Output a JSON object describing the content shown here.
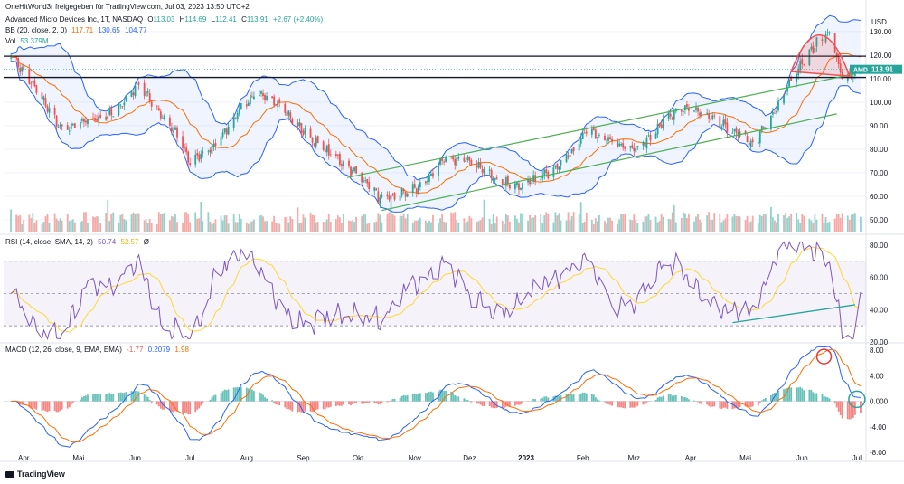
{
  "header": {
    "publisher": "OneHitWond3r freigegeben für TradingView.com, Jul 03, 2023 13:50 UTC+2",
    "symbol": "Advanced Micro Devices Inc, 1T, NASDAQ",
    "ohlc": {
      "o_label": "O",
      "o": "113.03",
      "h_label": "H",
      "h": "114.69",
      "l_label": "L",
      "l": "112.41",
      "c_label": "C",
      "c": "113.91",
      "chg": "+2.67 (+2.40%)"
    },
    "bb": {
      "label": "BB (20, close, 2, 0)",
      "basis": "117.71",
      "upper": "130.65",
      "lower": "104.77"
    },
    "vol": {
      "label": "Vol",
      "value": "53.379M"
    },
    "rsi": {
      "label": "RSI (14, close, SMA, 14, 2)",
      "value": "50.74",
      "ma": "52.57",
      "extra": "Ø"
    },
    "macd": {
      "label": "MACD (12, 26, close, 9, EMA, EMA)",
      "hist": "-1.77",
      "macd": "0.2079",
      "signal": "1.98"
    }
  },
  "currency": "USD",
  "price_tag": {
    "symbol": "AMD",
    "value": "113.91"
  },
  "brand": "TradingView",
  "colors": {
    "up": "#26a69a",
    "down": "#ef5350",
    "bb_band": "#2962ff",
    "bb_basis": "#ff6d00",
    "trend": "#4caf50",
    "rsi": "#7e57c2",
    "rsi_ma": "#fdd835",
    "macd": "#2962ff",
    "signal": "#ff6d00"
  },
  "chart_data": [
    {
      "type": "candlestick",
      "title": "Advanced Micro Devices Inc, 1T, NASDAQ",
      "ylim": [
        45,
        138
      ],
      "y_ticks": [
        "130.00",
        "120.00",
        "110.00",
        "100.00",
        "90.00",
        "80.00",
        "70.00",
        "60.00",
        "50.00"
      ],
      "x_ticks": [
        "Apr",
        "Mai",
        "Jun",
        "Jul",
        "Aug",
        "Sep",
        "Okt",
        "Nov",
        "Dez",
        "2023",
        "Feb",
        "Mrz",
        "Apr",
        "Mai",
        "Jun",
        "Jul"
      ],
      "close_path": [
        [
          "2022-03-25",
          120
        ],
        [
          "2022-04-08",
          105
        ],
        [
          "2022-04-22",
          88
        ],
        [
          "2022-05-06",
          92
        ],
        [
          "2022-05-20",
          95
        ],
        [
          "2022-06-03",
          108
        ],
        [
          "2022-06-10",
          100
        ],
        [
          "2022-06-24",
          86
        ],
        [
          "2022-07-01",
          74
        ],
        [
          "2022-07-15",
          82
        ],
        [
          "2022-07-29",
          98
        ],
        [
          "2022-08-05",
          103
        ],
        [
          "2022-08-19",
          100
        ],
        [
          "2022-08-26",
          92
        ],
        [
          "2022-09-09",
          82
        ],
        [
          "2022-09-23",
          74
        ],
        [
          "2022-10-07",
          65
        ],
        [
          "2022-10-14",
          58
        ],
        [
          "2022-10-28",
          62
        ],
        [
          "2022-11-04",
          64
        ],
        [
          "2022-11-18",
          76
        ],
        [
          "2022-12-02",
          75
        ],
        [
          "2022-12-16",
          67
        ],
        [
          "2022-12-30",
          64
        ],
        [
          "2023-01-13",
          70
        ],
        [
          "2023-01-27",
          80
        ],
        [
          "2023-02-03",
          88
        ],
        [
          "2023-02-17",
          83
        ],
        [
          "2023-03-03",
          80
        ],
        [
          "2023-03-17",
          92
        ],
        [
          "2023-03-31",
          98
        ],
        [
          "2023-04-14",
          92
        ],
        [
          "2023-04-28",
          86
        ],
        [
          "2023-05-05",
          82
        ],
        [
          "2023-05-19",
          98
        ],
        [
          "2023-05-26",
          110
        ],
        [
          "2023-06-09",
          125
        ],
        [
          "2023-06-16",
          130
        ],
        [
          "2023-06-23",
          110
        ],
        [
          "2023-06-30",
          112
        ],
        [
          "2023-07-03",
          113.91
        ]
      ],
      "horizontal_levels": [
        119.5,
        110.5
      ],
      "volume_label": "53.379M"
    },
    {
      "type": "line",
      "title": "RSI (14, close, SMA, 14, 2)",
      "ylim": [
        20,
        85
      ],
      "y_ticks": [
        "80.00",
        "60.00",
        "40.00",
        "20.00"
      ],
      "bands": [
        70,
        50,
        30
      ],
      "last": 50.74,
      "ma_last": 52.57
    },
    {
      "type": "line",
      "title": "MACD (12, 26, close, 9, EMA, EMA)",
      "ylim": [
        -8,
        9
      ],
      "y_ticks": [
        "8.00",
        "4.00",
        "0.000",
        "-4.00",
        "-8.00"
      ],
      "macd_last": 0.2079,
      "signal_last": 1.98,
      "hist_last": -1.77
    }
  ]
}
